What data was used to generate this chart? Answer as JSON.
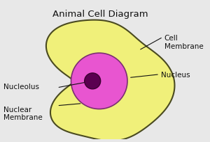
{
  "title": "Animal Cell Diagram",
  "title_fontsize": 9.5,
  "bg_color": "#e8e8e8",
  "cell_color": "#f0f07a",
  "cell_edge_color": "#4a4a20",
  "nucleus_color": "#e855d0",
  "nucleus_edge_color": "#7a3070",
  "nucleolus_color": "#5a0050",
  "nucleolus_edge_color": "#3a0030",
  "label_fontsize": 7.5,
  "annotation_color": "#111111",
  "labels": {
    "cell_membrane": "Cell\nMembrane",
    "nucleus": "Nucleus",
    "nucleolus": "Nucleolus",
    "nuclear_membrane": "Nuclear\nMembrane"
  }
}
